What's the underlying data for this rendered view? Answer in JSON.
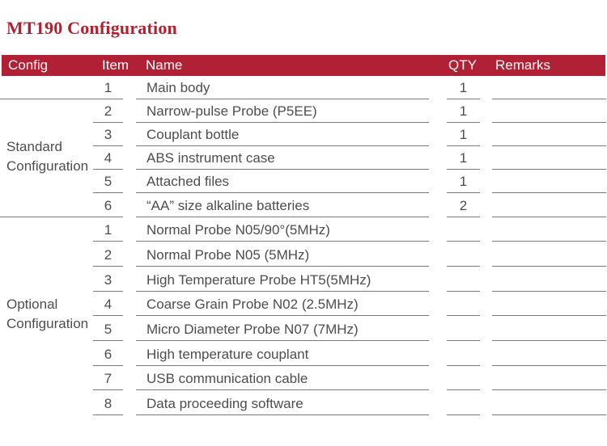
{
  "title": "MT190 Configuration",
  "colors": {
    "header_bg": "#B02136",
    "title_red": "#B2212F",
    "body_text": "#4D4D4D",
    "rule_line": "#787878"
  },
  "table": {
    "headers": [
      "Config",
      "Item",
      "Name",
      "QTY",
      "Remarks"
    ],
    "groups": [
      {
        "label": "Standard Configuration"
      },
      {
        "label": "Optional Configuration"
      }
    ],
    "rows": [
      {
        "group": "standard",
        "item": "1",
        "name": "Main body",
        "qty": "1",
        "remarks": ""
      },
      {
        "group": "standard",
        "item": "2",
        "name": "Narrow-pulse Probe (P5EE)",
        "qty": "1",
        "remarks": ""
      },
      {
        "group": "standard",
        "item": "3",
        "name": "Couplant bottle",
        "qty": "1",
        "remarks": ""
      },
      {
        "group": "standard",
        "item": "4",
        "name": "ABS instrument case",
        "qty": "1",
        "remarks": ""
      },
      {
        "group": "standard",
        "item": "5",
        "name": "Attached files",
        "qty": "1",
        "remarks": ""
      },
      {
        "group": "standard",
        "item": "6",
        "name": "“AA” size alkaline batteries",
        "qty": "2",
        "remarks": ""
      },
      {
        "group": "optional",
        "item": "1",
        "name": "Normal Probe N05/90°(5MHz)",
        "qty": "",
        "remarks": ""
      },
      {
        "group": "optional",
        "item": "2",
        "name": "Normal Probe N05 (5MHz)",
        "qty": "",
        "remarks": ""
      },
      {
        "group": "optional",
        "item": "3",
        "name": "High Temperature Probe HT5(5MHz)",
        "qty": "",
        "remarks": ""
      },
      {
        "group": "optional",
        "item": "4",
        "name": "Coarse Grain Probe N02 (2.5MHz)",
        "qty": "",
        "remarks": ""
      },
      {
        "group": "optional",
        "item": "5",
        "name": "Micro Diameter Probe N07 (7MHz)",
        "qty": "",
        "remarks": ""
      },
      {
        "group": "optional",
        "item": "6",
        "name": "High temperature couplant",
        "qty": "",
        "remarks": ""
      },
      {
        "group": "optional",
        "item": "7",
        "name": "USB communication cable",
        "qty": "",
        "remarks": ""
      },
      {
        "group": "optional",
        "item": "8",
        "name": "Data proceeding software",
        "qty": "",
        "remarks": ""
      }
    ]
  }
}
